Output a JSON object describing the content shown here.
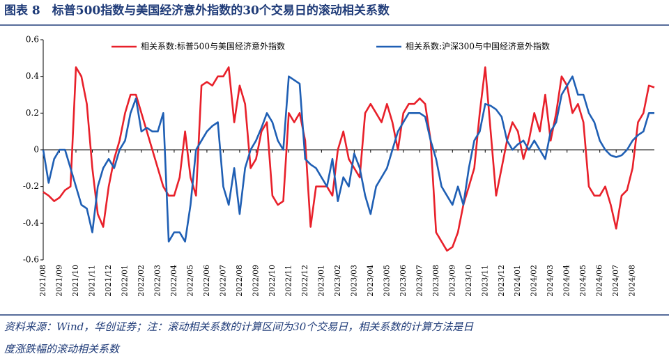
{
  "chart_data": {
    "type": "line",
    "title": "图表 8　标普500指数与美国经济意外指数的30个交易日的滚动相关系数",
    "source": [
      "资料来源：Wind，华创证券；注：滚动相关系数的计算区间为30个交易日，相关系数的计算方法是日",
      "度涨跌幅的滚动相关系数"
    ],
    "categories": [
      "2021/08",
      null,
      null,
      "2021/09",
      null,
      null,
      "2021/10",
      null,
      null,
      "2021/11",
      null,
      null,
      "2021/12",
      null,
      null,
      "2022/01",
      null,
      null,
      "2022/02",
      null,
      null,
      "2022/03",
      null,
      null,
      "2022/04",
      null,
      null,
      "2022/05",
      null,
      null,
      "2022/06",
      null,
      null,
      "2022/07",
      null,
      null,
      "2022/08",
      null,
      null,
      "2022/09",
      null,
      null,
      "2022/10",
      null,
      null,
      "2022/11",
      null,
      null,
      "2022/12",
      null,
      null,
      "2023/01",
      null,
      null,
      "2023/02",
      null,
      null,
      "2023/03",
      null,
      null,
      "2023/04",
      null,
      null,
      "2023/05",
      null,
      null,
      "2023/06",
      null,
      null,
      "2023/07",
      null,
      null,
      "2023/08",
      null,
      null,
      "2023/09",
      null,
      null,
      "2023/10",
      null,
      null,
      "2023/11",
      null,
      null,
      "2023/12",
      null,
      null,
      "2024/01",
      null,
      null,
      "2024/02",
      null,
      null,
      "2024/03",
      null,
      null,
      "2024/04",
      null,
      null,
      "2024/05",
      null,
      null,
      "2024/06",
      null,
      null,
      "2024/07",
      null,
      null,
      "2024/08",
      null,
      null,
      null,
      null
    ],
    "series": [
      {
        "name": "相关系数:标普500与美国经济意外指数",
        "color": "#e8202a",
        "values": [
          -0.23,
          -0.25,
          -0.28,
          -0.26,
          -0.22,
          -0.2,
          0.45,
          0.4,
          0.25,
          -0.1,
          -0.35,
          -0.42,
          -0.2,
          -0.05,
          0.05,
          0.2,
          0.3,
          0.3,
          0.2,
          0.1,
          0.0,
          -0.1,
          -0.2,
          -0.25,
          -0.25,
          -0.15,
          0.1,
          -0.15,
          -0.25,
          0.35,
          0.37,
          0.35,
          0.4,
          0.4,
          0.45,
          0.15,
          0.35,
          0.25,
          -0.1,
          -0.05,
          0.1,
          0.15,
          -0.25,
          -0.3,
          -0.28,
          0.2,
          0.15,
          0.2,
          0.05,
          -0.42,
          -0.2,
          -0.2,
          -0.2,
          -0.25,
          0.0,
          0.1,
          -0.05,
          -0.1,
          -0.15,
          0.2,
          0.25,
          0.2,
          0.15,
          0.25,
          0.15,
          0.0,
          0.2,
          0.25,
          0.25,
          0.28,
          0.25,
          0.05,
          -0.45,
          -0.5,
          -0.55,
          -0.53,
          -0.45,
          -0.3,
          -0.2,
          -0.1,
          0.2,
          0.45,
          0.1,
          -0.25,
          -0.1,
          0.05,
          0.15,
          0.1,
          -0.05,
          0.05,
          0.2,
          0.1,
          0.3,
          0.05,
          0.2,
          0.4,
          0.35,
          0.2,
          0.25,
          0.15,
          -0.2,
          -0.25,
          -0.25,
          -0.2,
          -0.3,
          -0.43,
          -0.25,
          -0.22,
          -0.1,
          0.15,
          0.2,
          0.35,
          0.34
        ]
      },
      {
        "name": "相关系数:沪深300与中国经济意外指数",
        "color": "#1f5fb4",
        "values": [
          0,
          -0.18,
          -0.05,
          0,
          0,
          -0.1,
          -0.2,
          -0.3,
          -0.32,
          -0.45,
          -0.2,
          -0.1,
          -0.05,
          -0.1,
          0.0,
          0.05,
          0.2,
          0.28,
          0.1,
          0.12,
          0.1,
          0.1,
          0.2,
          -0.5,
          -0.45,
          -0.45,
          -0.5,
          -0.3,
          0.0,
          0.05,
          0.1,
          0.13,
          0.15,
          -0.2,
          -0.3,
          -0.1,
          -0.35,
          -0.1,
          0.0,
          0.05,
          0.12,
          0.2,
          0.15,
          0.05,
          0.0,
          0.4,
          0.38,
          0.36,
          -0.05,
          -0.08,
          -0.1,
          -0.15,
          -0.2,
          -0.05,
          -0.28,
          -0.15,
          -0.2,
          -0.02,
          -0.1,
          -0.25,
          -0.35,
          -0.2,
          -0.15,
          -0.1,
          0.0,
          0.1,
          0.15,
          0.2,
          0.2,
          0.2,
          0.18,
          0.05,
          -0.05,
          -0.2,
          -0.25,
          -0.3,
          -0.2,
          -0.3,
          -0.1,
          0.05,
          0.1,
          0.25,
          0.24,
          0.22,
          0.18,
          0.05,
          0.0,
          0.03,
          0.05,
          0.0,
          0.05,
          0.0,
          -0.05,
          0.1,
          0.15,
          0.3,
          0.35,
          0.4,
          0.3,
          0.3,
          0.2,
          0.15,
          0.05,
          0.0,
          -0.03,
          -0.04,
          -0.03,
          0.0,
          0.05,
          0.08,
          0.1,
          0.2,
          0.2
        ]
      }
    ],
    "ylim": [
      -0.6,
      0.6
    ],
    "yticks": [
      0.6,
      0.4,
      0.2,
      0,
      -0.2,
      -0.4,
      -0.6
    ],
    "legend": "top",
    "grid": false
  }
}
